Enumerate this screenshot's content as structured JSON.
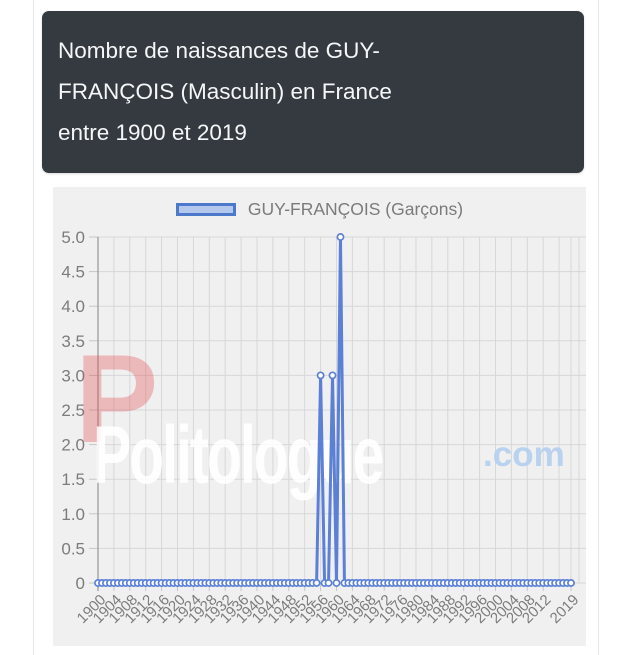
{
  "header": {
    "title_lines": [
      "Nombre de naissances de GUY-",
      "FRANÇOIS (Masculin) en France",
      "entre 1900 et 2019"
    ],
    "bg_color": "#343a40"
  },
  "legend": {
    "label": "GUY-FRANÇOIS (Garçons)",
    "swatch_fill": "#b4c7ec",
    "swatch_border": "#4c79ca"
  },
  "watermark": {
    "logo_letter": "P",
    "text": "Politologue",
    "suffix": ".com",
    "logo_color": "#e13a3a",
    "text_color": "#ffffff",
    "suffix_color": "#b4d0ee"
  },
  "chart_data": {
    "type": "line",
    "title": "Nombre de naissances de GUY-FRANÇOIS (Masculin) en France entre 1900 et 2019",
    "xlabel": "",
    "ylabel": "",
    "x_start": 1900,
    "x_end": 2019,
    "ylim": [
      0,
      5
    ],
    "grid": true,
    "legend_position": "top",
    "accent_color": "#5b80d6",
    "y_ticks": [
      "5.0",
      "4.5",
      "4.0",
      "3.5",
      "3.0",
      "2.5",
      "2.0",
      "1.5",
      "1.0",
      "0.5",
      "0"
    ],
    "x_tick_labels": [
      "1900",
      "1904",
      "1908",
      "1912",
      "1916",
      "1920",
      "1924",
      "1928",
      "1932",
      "1936",
      "1940",
      "1944",
      "1948",
      "1952",
      "1956",
      "1960",
      "1964",
      "1968",
      "1972",
      "1976",
      "1980",
      "1984",
      "1988",
      "1992",
      "1996",
      "2000",
      "2004",
      "2008",
      "2012",
      "2019"
    ],
    "nonzero_points": {
      "1956": 3,
      "1959": 3,
      "1961": 5
    },
    "series": [
      {
        "name": "GUY-FRANÇOIS (Garçons)",
        "color": "#5b80d6",
        "values": [
          0,
          0,
          0,
          0,
          0,
          0,
          0,
          0,
          0,
          0,
          0,
          0,
          0,
          0,
          0,
          0,
          0,
          0,
          0,
          0,
          0,
          0,
          0,
          0,
          0,
          0,
          0,
          0,
          0,
          0,
          0,
          0,
          0,
          0,
          0,
          0,
          0,
          0,
          0,
          0,
          0,
          0,
          0,
          0,
          0,
          0,
          0,
          0,
          0,
          0,
          0,
          0,
          0,
          0,
          0,
          0,
          3,
          0,
          0,
          3,
          0,
          5,
          0,
          0,
          0,
          0,
          0,
          0,
          0,
          0,
          0,
          0,
          0,
          0,
          0,
          0,
          0,
          0,
          0,
          0,
          0,
          0,
          0,
          0,
          0,
          0,
          0,
          0,
          0,
          0,
          0,
          0,
          0,
          0,
          0,
          0,
          0,
          0,
          0,
          0,
          0,
          0,
          0,
          0,
          0,
          0,
          0,
          0,
          0,
          0,
          0,
          0,
          0,
          0,
          0,
          0,
          0,
          0,
          0,
          0
        ]
      }
    ]
  }
}
